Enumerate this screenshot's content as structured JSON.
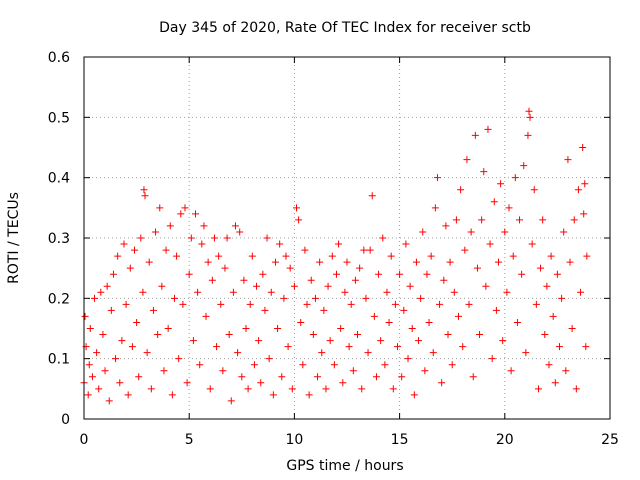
{
  "chart_data": {
    "type": "scatter",
    "title": "Day 345 of 2020, Rate Of TEC Index for receiver sctb",
    "xlabel": "GPS time / hours",
    "ylabel": "ROTI / TECUs",
    "xlim": [
      0,
      25
    ],
    "ylim": [
      0,
      0.6
    ],
    "xticks": [
      0,
      5,
      10,
      15,
      20,
      25
    ],
    "xtick_labels": [
      "0",
      "5",
      "10",
      "15",
      "20",
      "25"
    ],
    "yticks": [
      0,
      0.1,
      0.2,
      0.3,
      0.4,
      0.5,
      0.6
    ],
    "ytick_labels": [
      "0",
      "0.1",
      "0.2",
      "0.3",
      "0.4",
      "0.5",
      "0.6"
    ],
    "grid": true,
    "marker": "plus",
    "color": "#ff0000",
    "series": [
      {
        "values": [
          [
            0.0,
            0.06
          ],
          [
            0.05,
            0.17
          ],
          [
            0.1,
            0.12
          ],
          [
            0.2,
            0.04
          ],
          [
            0.25,
            0.09
          ],
          [
            0.3,
            0.15
          ],
          [
            0.4,
            0.07
          ],
          [
            0.5,
            0.2
          ],
          [
            0.6,
            0.11
          ],
          [
            0.7,
            0.05
          ],
          [
            0.8,
            0.21
          ],
          [
            0.9,
            0.14
          ],
          [
            1.0,
            0.08
          ],
          [
            1.1,
            0.22
          ],
          [
            1.2,
            0.03
          ],
          [
            1.3,
            0.18
          ],
          [
            1.4,
            0.24
          ],
          [
            1.5,
            0.1
          ],
          [
            1.6,
            0.27
          ],
          [
            1.7,
            0.06
          ],
          [
            1.8,
            0.13
          ],
          [
            1.9,
            0.29
          ],
          [
            2.0,
            0.19
          ],
          [
            2.1,
            0.04
          ],
          [
            2.2,
            0.25
          ],
          [
            2.3,
            0.12
          ],
          [
            2.4,
            0.28
          ],
          [
            2.5,
            0.16
          ],
          [
            2.6,
            0.07
          ],
          [
            2.7,
            0.3
          ],
          [
            2.8,
            0.21
          ],
          [
            2.85,
            0.38
          ],
          [
            2.9,
            0.37
          ],
          [
            3.0,
            0.11
          ],
          [
            3.1,
            0.26
          ],
          [
            3.2,
            0.05
          ],
          [
            3.3,
            0.18
          ],
          [
            3.4,
            0.31
          ],
          [
            3.5,
            0.14
          ],
          [
            3.6,
            0.35
          ],
          [
            3.7,
            0.22
          ],
          [
            3.8,
            0.08
          ],
          [
            3.9,
            0.28
          ],
          [
            4.0,
            0.15
          ],
          [
            4.1,
            0.32
          ],
          [
            4.2,
            0.04
          ],
          [
            4.3,
            0.2
          ],
          [
            4.4,
            0.27
          ],
          [
            4.5,
            0.1
          ],
          [
            4.6,
            0.34
          ],
          [
            4.7,
            0.19
          ],
          [
            4.8,
            0.35
          ],
          [
            4.9,
            0.06
          ],
          [
            5.0,
            0.24
          ],
          [
            5.1,
            0.3
          ],
          [
            5.2,
            0.13
          ],
          [
            5.3,
            0.34
          ],
          [
            5.4,
            0.21
          ],
          [
            5.5,
            0.09
          ],
          [
            5.6,
            0.29
          ],
          [
            5.7,
            0.32
          ],
          [
            5.8,
            0.17
          ],
          [
            5.9,
            0.26
          ],
          [
            6.0,
            0.05
          ],
          [
            6.1,
            0.23
          ],
          [
            6.2,
            0.3
          ],
          [
            6.3,
            0.12
          ],
          [
            6.4,
            0.27
          ],
          [
            6.5,
            0.19
          ],
          [
            6.6,
            0.08
          ],
          [
            6.7,
            0.25
          ],
          [
            6.8,
            0.3
          ],
          [
            6.9,
            0.14
          ],
          [
            7.0,
            0.03
          ],
          [
            7.1,
            0.21
          ],
          [
            7.2,
            0.32
          ],
          [
            7.3,
            0.11
          ],
          [
            7.4,
            0.31
          ],
          [
            7.5,
            0.07
          ],
          [
            7.6,
            0.23
          ],
          [
            7.7,
            0.15
          ],
          [
            7.8,
            0.05
          ],
          [
            7.9,
            0.19
          ],
          [
            8.0,
            0.27
          ],
          [
            8.1,
            0.09
          ],
          [
            8.2,
            0.22
          ],
          [
            8.3,
            0.13
          ],
          [
            8.4,
            0.06
          ],
          [
            8.5,
            0.24
          ],
          [
            8.6,
            0.18
          ],
          [
            8.7,
            0.3
          ],
          [
            8.8,
            0.1
          ],
          [
            8.9,
            0.21
          ],
          [
            9.0,
            0.04
          ],
          [
            9.1,
            0.26
          ],
          [
            9.2,
            0.15
          ],
          [
            9.3,
            0.29
          ],
          [
            9.4,
            0.07
          ],
          [
            9.5,
            0.2
          ],
          [
            9.6,
            0.27
          ],
          [
            9.7,
            0.12
          ],
          [
            9.8,
            0.25
          ],
          [
            9.9,
            0.05
          ],
          [
            10.0,
            0.22
          ],
          [
            10.1,
            0.35
          ],
          [
            10.2,
            0.33
          ],
          [
            10.3,
            0.16
          ],
          [
            10.4,
            0.09
          ],
          [
            10.5,
            0.28
          ],
          [
            10.6,
            0.19
          ],
          [
            10.7,
            0.04
          ],
          [
            10.8,
            0.23
          ],
          [
            10.9,
            0.14
          ],
          [
            11.0,
            0.2
          ],
          [
            11.1,
            0.07
          ],
          [
            11.2,
            0.26
          ],
          [
            11.3,
            0.11
          ],
          [
            11.4,
            0.18
          ],
          [
            11.5,
            0.05
          ],
          [
            11.6,
            0.22
          ],
          [
            11.7,
            0.13
          ],
          [
            11.8,
            0.27
          ],
          [
            11.9,
            0.09
          ],
          [
            12.0,
            0.24
          ],
          [
            12.1,
            0.29
          ],
          [
            12.2,
            0.15
          ],
          [
            12.3,
            0.06
          ],
          [
            12.4,
            0.21
          ],
          [
            12.5,
            0.26
          ],
          [
            12.6,
            0.12
          ],
          [
            12.7,
            0.19
          ],
          [
            12.8,
            0.08
          ],
          [
            12.9,
            0.23
          ],
          [
            13.0,
            0.14
          ],
          [
            13.1,
            0.25
          ],
          [
            13.2,
            0.05
          ],
          [
            13.3,
            0.28
          ],
          [
            13.4,
            0.2
          ],
          [
            13.5,
            0.11
          ],
          [
            13.6,
            0.28
          ],
          [
            13.7,
            0.37
          ],
          [
            13.8,
            0.17
          ],
          [
            13.9,
            0.07
          ],
          [
            14.0,
            0.24
          ],
          [
            14.1,
            0.13
          ],
          [
            14.2,
            0.3
          ],
          [
            14.3,
            0.09
          ],
          [
            14.4,
            0.21
          ],
          [
            14.5,
            0.16
          ],
          [
            14.6,
            0.27
          ],
          [
            14.7,
            0.05
          ],
          [
            14.8,
            0.19
          ],
          [
            14.9,
            0.12
          ],
          [
            15.0,
            0.24
          ],
          [
            15.1,
            0.07
          ],
          [
            15.2,
            0.18
          ],
          [
            15.3,
            0.29
          ],
          [
            15.4,
            0.1
          ],
          [
            15.5,
            0.22
          ],
          [
            15.6,
            0.15
          ],
          [
            15.7,
            0.04
          ],
          [
            15.8,
            0.26
          ],
          [
            15.9,
            0.13
          ],
          [
            16.0,
            0.2
          ],
          [
            16.1,
            0.31
          ],
          [
            16.2,
            0.08
          ],
          [
            16.3,
            0.24
          ],
          [
            16.4,
            0.16
          ],
          [
            16.5,
            0.27
          ],
          [
            16.6,
            0.11
          ],
          [
            16.7,
            0.35
          ],
          [
            16.8,
            0.4
          ],
          [
            16.9,
            0.19
          ],
          [
            17.0,
            0.06
          ],
          [
            17.1,
            0.23
          ],
          [
            17.2,
            0.32
          ],
          [
            17.3,
            0.14
          ],
          [
            17.4,
            0.26
          ],
          [
            17.5,
            0.09
          ],
          [
            17.6,
            0.21
          ],
          [
            17.7,
            0.33
          ],
          [
            17.8,
            0.17
          ],
          [
            17.9,
            0.38
          ],
          [
            18.0,
            0.12
          ],
          [
            18.1,
            0.28
          ],
          [
            18.2,
            0.43
          ],
          [
            18.3,
            0.19
          ],
          [
            18.4,
            0.31
          ],
          [
            18.5,
            0.07
          ],
          [
            18.6,
            0.47
          ],
          [
            18.7,
            0.25
          ],
          [
            18.8,
            0.14
          ],
          [
            18.9,
            0.33
          ],
          [
            19.0,
            0.41
          ],
          [
            19.1,
            0.22
          ],
          [
            19.2,
            0.48
          ],
          [
            19.3,
            0.29
          ],
          [
            19.4,
            0.1
          ],
          [
            19.5,
            0.36
          ],
          [
            19.6,
            0.18
          ],
          [
            19.7,
            0.26
          ],
          [
            19.8,
            0.39
          ],
          [
            19.9,
            0.13
          ],
          [
            20.0,
            0.31
          ],
          [
            20.1,
            0.21
          ],
          [
            20.2,
            0.35
          ],
          [
            20.3,
            0.08
          ],
          [
            20.4,
            0.27
          ],
          [
            20.5,
            0.4
          ],
          [
            20.6,
            0.16
          ],
          [
            20.7,
            0.33
          ],
          [
            20.8,
            0.24
          ],
          [
            20.9,
            0.42
          ],
          [
            21.0,
            0.11
          ],
          [
            21.1,
            0.47
          ],
          [
            21.15,
            0.51
          ],
          [
            21.2,
            0.5
          ],
          [
            21.3,
            0.29
          ],
          [
            21.4,
            0.38
          ],
          [
            21.5,
            0.19
          ],
          [
            21.6,
            0.05
          ],
          [
            21.7,
            0.25
          ],
          [
            21.8,
            0.33
          ],
          [
            21.9,
            0.14
          ],
          [
            22.0,
            0.22
          ],
          [
            22.1,
            0.09
          ],
          [
            22.2,
            0.27
          ],
          [
            22.3,
            0.17
          ],
          [
            22.4,
            0.06
          ],
          [
            22.5,
            0.24
          ],
          [
            22.6,
            0.12
          ],
          [
            22.7,
            0.2
          ],
          [
            22.8,
            0.31
          ],
          [
            22.9,
            0.08
          ],
          [
            23.0,
            0.43
          ],
          [
            23.1,
            0.26
          ],
          [
            23.2,
            0.15
          ],
          [
            23.3,
            0.33
          ],
          [
            23.4,
            0.05
          ],
          [
            23.5,
            0.38
          ],
          [
            23.6,
            0.21
          ],
          [
            23.7,
            0.45
          ],
          [
            23.75,
            0.34
          ],
          [
            23.8,
            0.39
          ],
          [
            23.85,
            0.12
          ],
          [
            23.9,
            0.27
          ]
        ]
      }
    ]
  }
}
